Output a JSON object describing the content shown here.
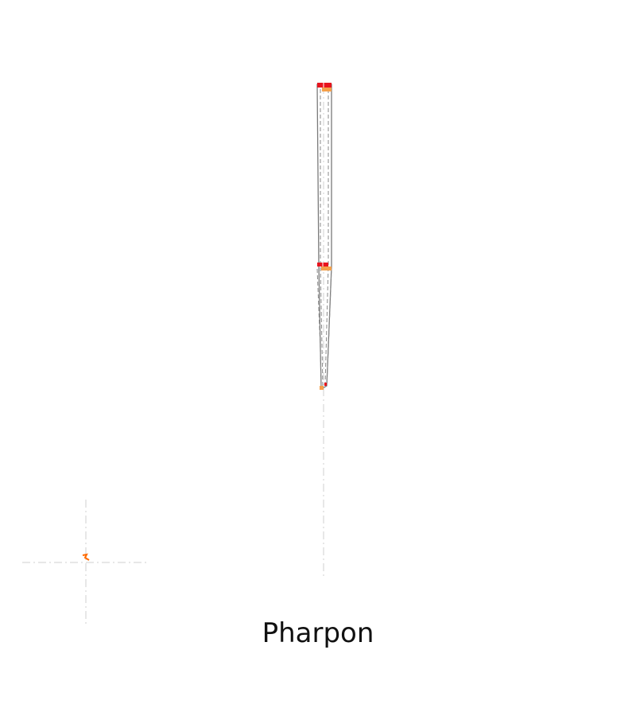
{
  "caption": "Pharpon",
  "colors": {
    "outline": "#7a7a7a",
    "guide": "#cfcfcf",
    "marker_red": "#e8141e",
    "marker_orange": "#f5a04a",
    "axis_marker": "#ff6a00"
  }
}
